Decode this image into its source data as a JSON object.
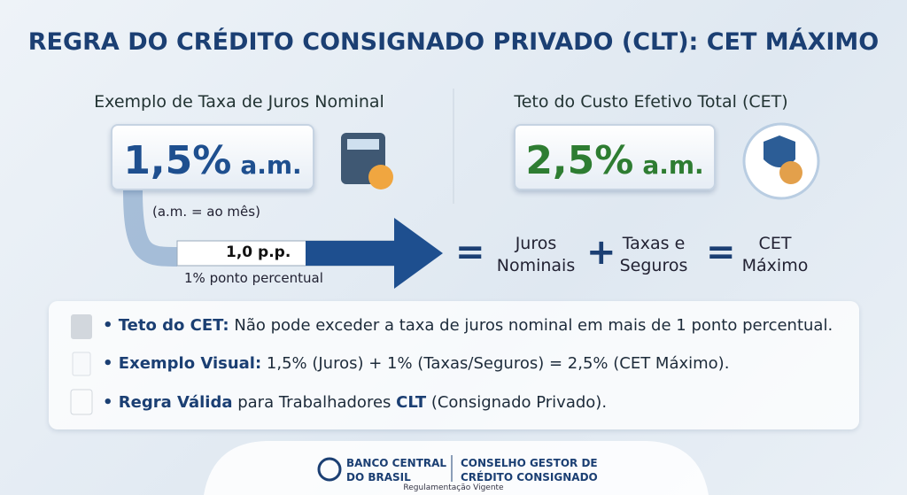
{
  "title": "REGRA DO CRÉDITO CONSIGNADO PRIVADO (CLT): CET MÁXIMO",
  "left": {
    "label": "Exemplo de Taxa de Juros Nominal",
    "value": "1,5%",
    "unit": "a.m.",
    "note": "(a.m. = ao mês)"
  },
  "arrow": {
    "label": "1,0 p.p.",
    "caption": "1% ponto percentual"
  },
  "right": {
    "label": "Teto do Custo Efetivo Total (CET)",
    "value": "2,5%",
    "unit": "a.m."
  },
  "formula": {
    "operators": [
      "=",
      "+",
      "="
    ],
    "terms": [
      [
        "Juros",
        "Nominais"
      ],
      [
        "Taxas e",
        "Seguros"
      ],
      [
        "CET",
        "Máximo"
      ]
    ]
  },
  "bullets": [
    [
      "Teto do CET:",
      " Não pode exceder a taxa de juros nominal em mais de 1 ponto percentual."
    ],
    [
      "Exemplo Visual:",
      " 1,5% (Juros) + 1% (Taxas/Seguros) = 2,5% (CET Máximo)."
    ],
    [
      "Regra Válida",
      " para Trabalhadores ",
      "CLT",
      " (Consignado Privado)."
    ]
  ],
  "footer": {
    "bank": [
      "BANCO CENTRAL",
      "DO BRASIL"
    ],
    "council": [
      "CONSELHO GESTOR DE",
      "CRÉDITO CONSIGNADO"
    ],
    "caption": "Regulamentação Vigente"
  }
}
